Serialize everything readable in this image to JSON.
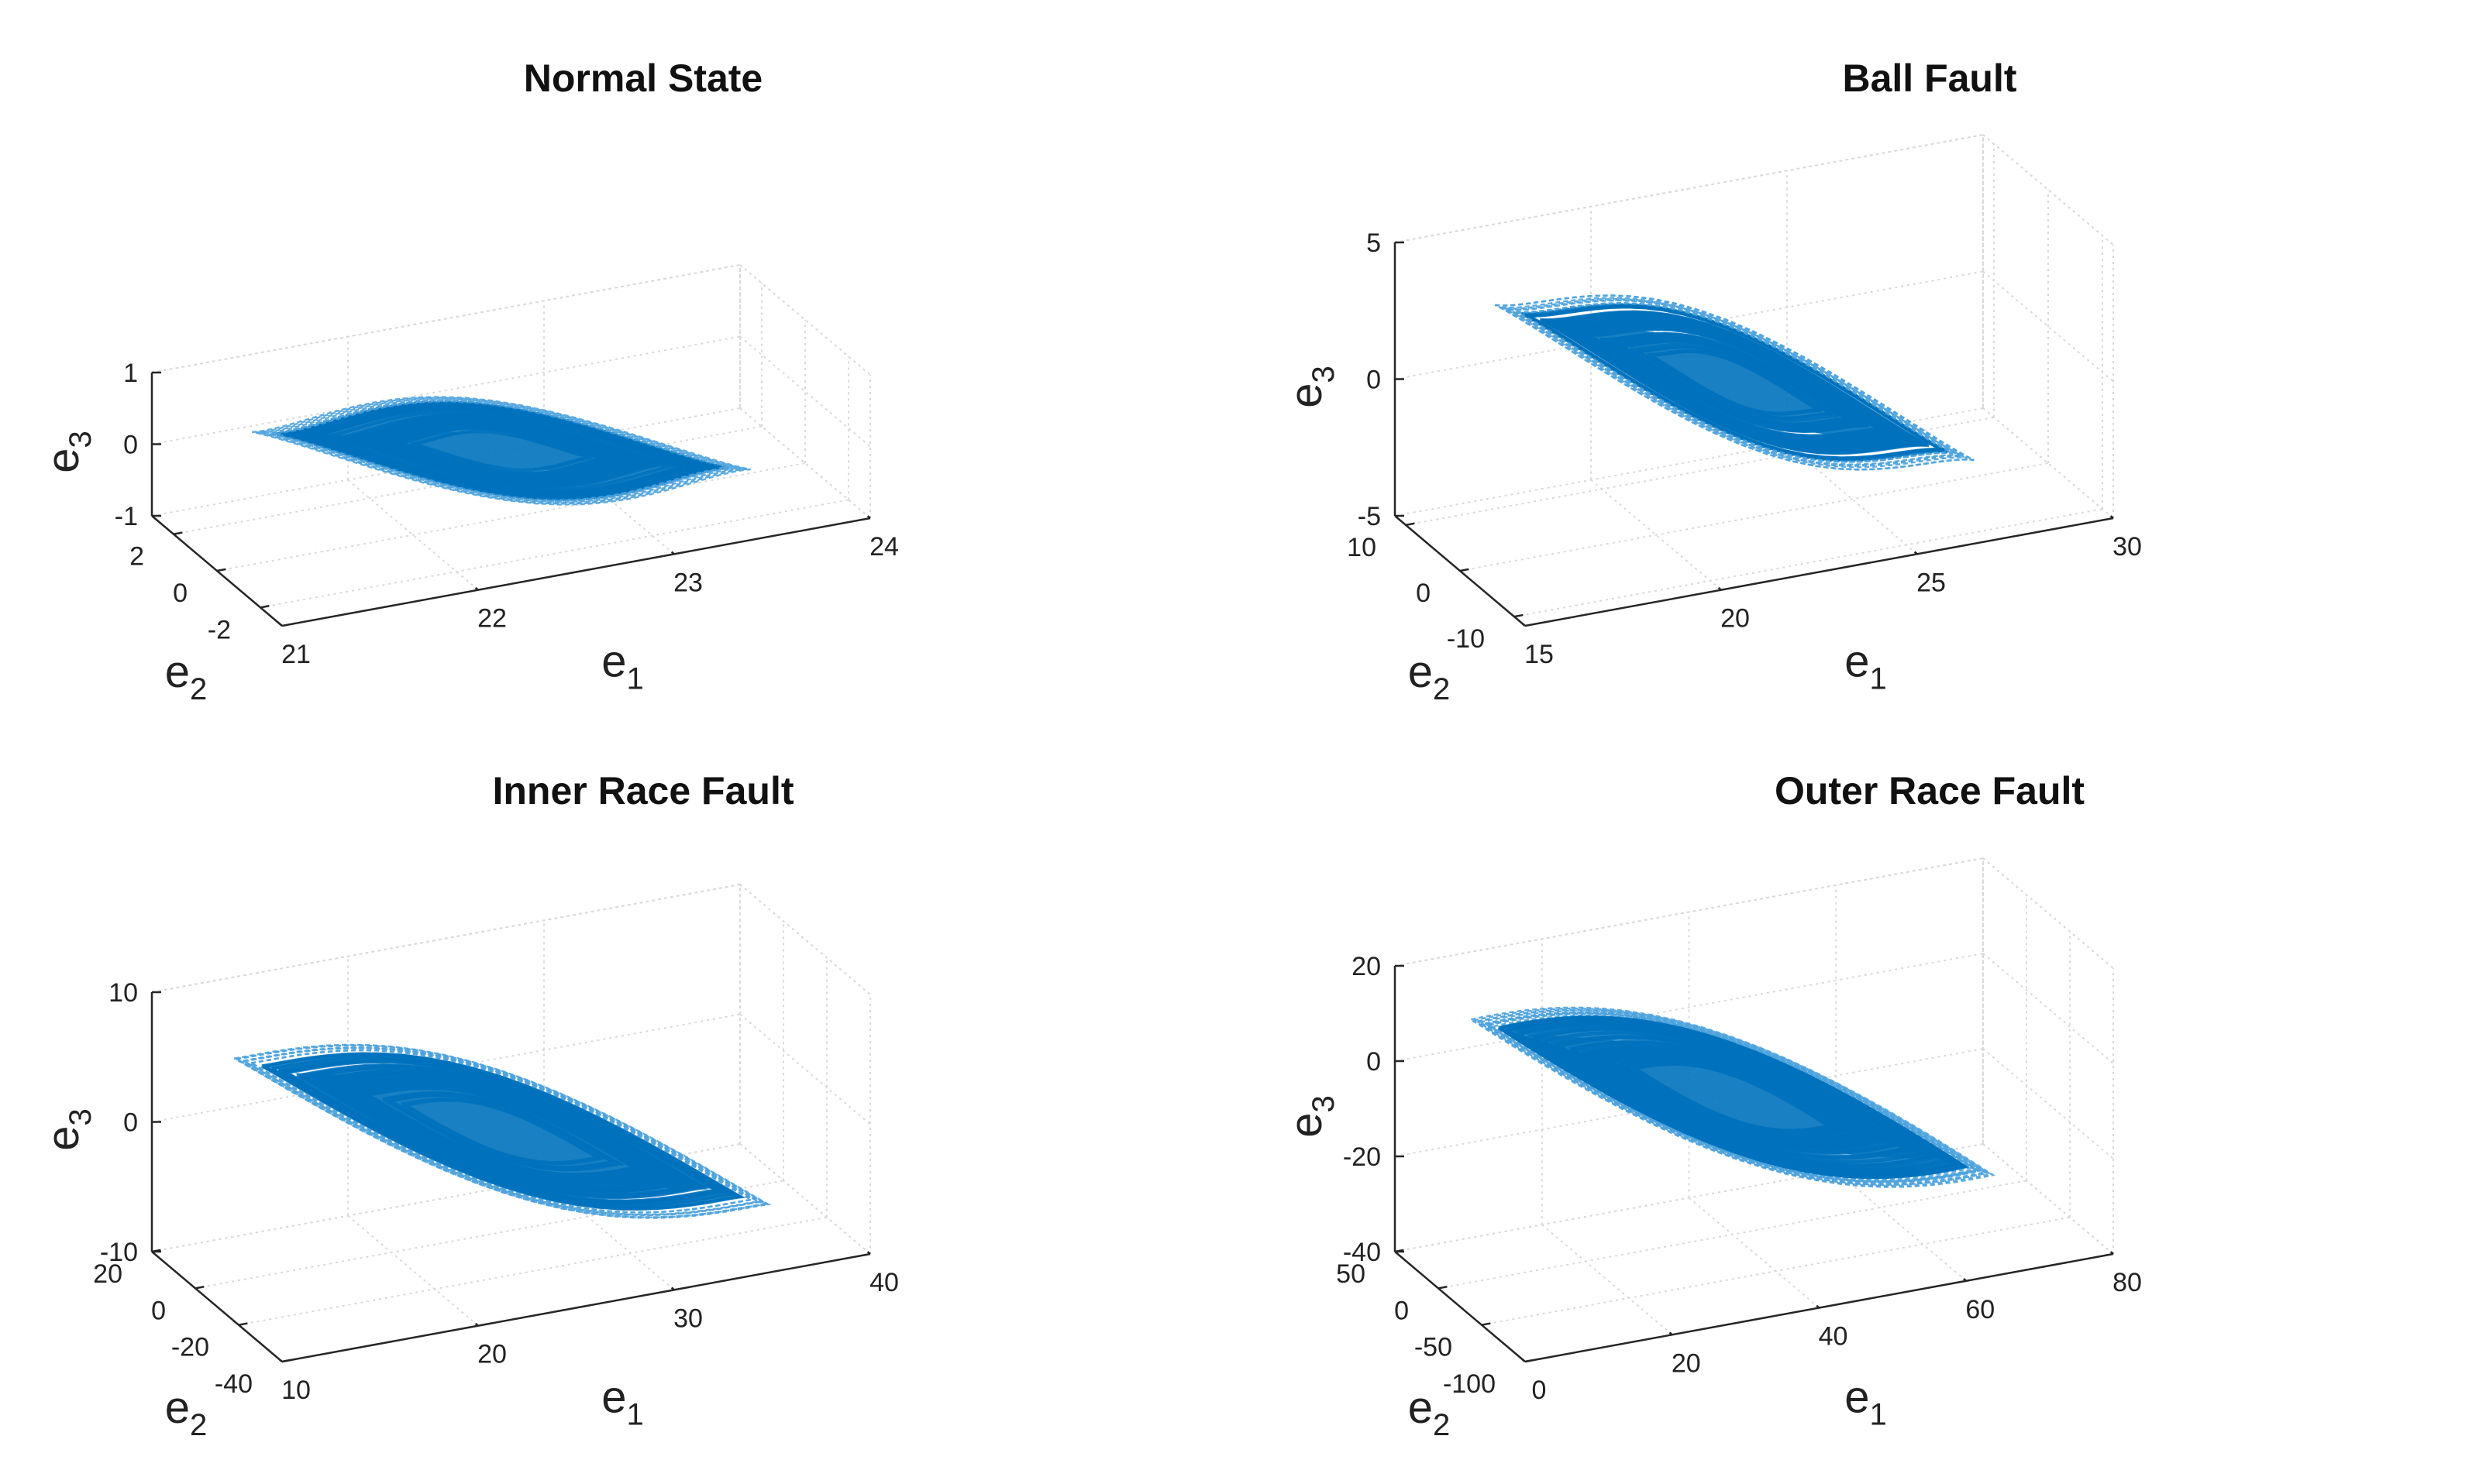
{
  "chart_data": [
    {
      "type": "line3d",
      "title": "Normal State",
      "xlabel": "e",
      "xlabel_sub": "1",
      "ylabel": "e",
      "ylabel_sub": "2",
      "zlabel": "e",
      "zlabel_sub": "3",
      "xlim": [
        21,
        24
      ],
      "ylim": [
        -3,
        3
      ],
      "zlim": [
        -1,
        1
      ],
      "xticks": [
        21,
        22,
        23,
        24
      ],
      "yticks": [
        2,
        0,
        -2
      ],
      "zticks": [
        1,
        0,
        -1
      ],
      "attractor": {
        "x_from": 21.2,
        "x_to": 23.7,
        "z_high": 0.85,
        "z_low": -0.95,
        "width": 0.9,
        "tip_shape": 0.35
      }
    },
    {
      "type": "line3d",
      "title": "Ball Fault",
      "xlabel": "e",
      "xlabel_sub": "1",
      "ylabel": "e",
      "ylabel_sub": "2",
      "zlabel": "e",
      "zlabel_sub": "3",
      "xlim": [
        15,
        30
      ],
      "ylim": [
        -12,
        12
      ],
      "zlim": [
        -5,
        5
      ],
      "xticks": [
        15,
        20,
        25,
        30
      ],
      "yticks": [
        10,
        0,
        -10
      ],
      "zticks": [
        5,
        0,
        -5
      ],
      "attractor": {
        "x_from": 16,
        "x_to": 28,
        "z_high": 4.5,
        "z_low": -4.4,
        "width": 0.85,
        "tip_shape": 0.3
      }
    },
    {
      "type": "line3d",
      "title": "Inner Race Fault",
      "xlabel": "e",
      "xlabel_sub": "1",
      "ylabel": "e",
      "ylabel_sub": "2",
      "zlabel": "e",
      "zlabel_sub": "3",
      "xlim": [
        10,
        40
      ],
      "ylim": [
        -40,
        20
      ],
      "zlim": [
        -10,
        10
      ],
      "xticks": [
        10,
        20,
        30,
        40
      ],
      "yticks": [
        20,
        0,
        -20,
        -40
      ],
      "zticks": [
        10,
        0,
        -10
      ],
      "attractor": {
        "x_from": 11,
        "x_to": 38,
        "z_high": 9,
        "z_low": -10,
        "width": 0.8,
        "tip_shape": 0.1
      }
    },
    {
      "type": "line3d",
      "title": "Outer Race Fault",
      "xlabel": "e",
      "xlabel_sub": "1",
      "ylabel": "e",
      "ylabel_sub": "2",
      "zlabel": "e",
      "zlabel_sub": "3",
      "xlim": [
        0,
        80
      ],
      "ylim": [
        -100,
        50
      ],
      "zlim": [
        -40,
        20
      ],
      "xticks": [
        0,
        20,
        40,
        60,
        80
      ],
      "yticks": [
        50,
        0,
        -50,
        -100
      ],
      "zticks": [
        20,
        0,
        -20,
        -40
      ],
      "attractor": {
        "x_from": 2,
        "x_to": 72,
        "z_high": 20,
        "z_low": -33,
        "width": 0.75,
        "tip_shape": 0.05
      }
    }
  ],
  "colors": {
    "line": "#0072bd",
    "line_light": "#4fa3dd",
    "axis": "#262626",
    "grid": "#d9d9d9"
  }
}
